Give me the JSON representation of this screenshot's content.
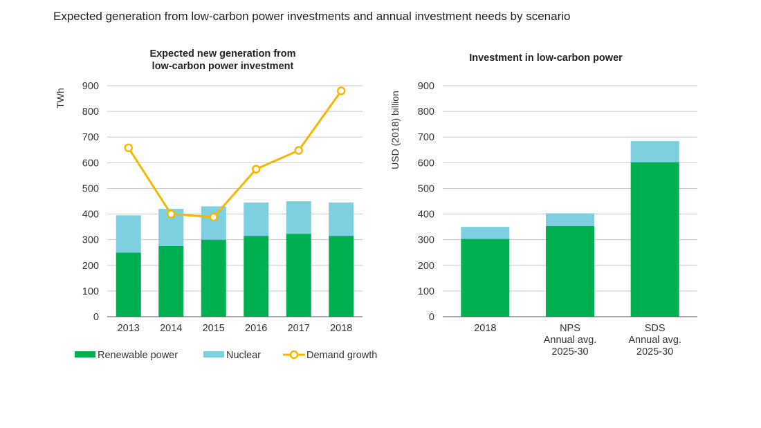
{
  "page": {
    "title": "Expected generation from low-carbon power investments and annual investment needs by scenario"
  },
  "colors": {
    "renewable": "#00b050",
    "nuclear": "#7ecfe0",
    "demand": "#f5b700",
    "grid": "#c8c8c8",
    "axis": "#555555"
  },
  "chart_data": [
    {
      "type": "bar",
      "stacked": true,
      "title_lines": [
        "Expected new generation from",
        "low-carbon power investment"
      ],
      "ylabel": "TWh",
      "xlabel": "",
      "ylim": [
        0,
        900
      ],
      "yticks": [
        0,
        100,
        200,
        300,
        400,
        500,
        600,
        700,
        800,
        900
      ],
      "categories": [
        "2013",
        "2014",
        "2015",
        "2016",
        "2017",
        "2018"
      ],
      "series": [
        {
          "name": "Renewable power",
          "kind": "bar",
          "values": [
            250,
            275,
            300,
            315,
            323,
            315
          ]
        },
        {
          "name": "Nuclear",
          "kind": "bar",
          "values": [
            145,
            145,
            130,
            130,
            127,
            130
          ]
        },
        {
          "name": "Demand growth",
          "kind": "line",
          "values": [
            658,
            400,
            388,
            575,
            648,
            880
          ]
        }
      ],
      "legend": [
        "Renewable power",
        "Nuclear",
        "Demand growth"
      ],
      "legend_position": "bottom",
      "grid": true
    },
    {
      "type": "bar",
      "stacked": true,
      "title_lines": [
        "Investment in low-carbon power"
      ],
      "ylabel": "USD (2018) billion",
      "xlabel": "",
      "ylim": [
        0,
        900
      ],
      "yticks": [
        0,
        100,
        200,
        300,
        400,
        500,
        600,
        700,
        800,
        900
      ],
      "categories": [
        [
          "2018"
        ],
        [
          "NPS",
          "Annual avg.",
          "2025-30"
        ],
        [
          "SDS",
          "Annual avg.",
          "2025-30"
        ]
      ],
      "series": [
        {
          "name": "Renewable power",
          "kind": "bar",
          "values": [
            303,
            353,
            602
          ]
        },
        {
          "name": "Nuclear",
          "kind": "bar",
          "values": [
            47,
            50,
            82
          ]
        }
      ],
      "grid": true
    }
  ]
}
